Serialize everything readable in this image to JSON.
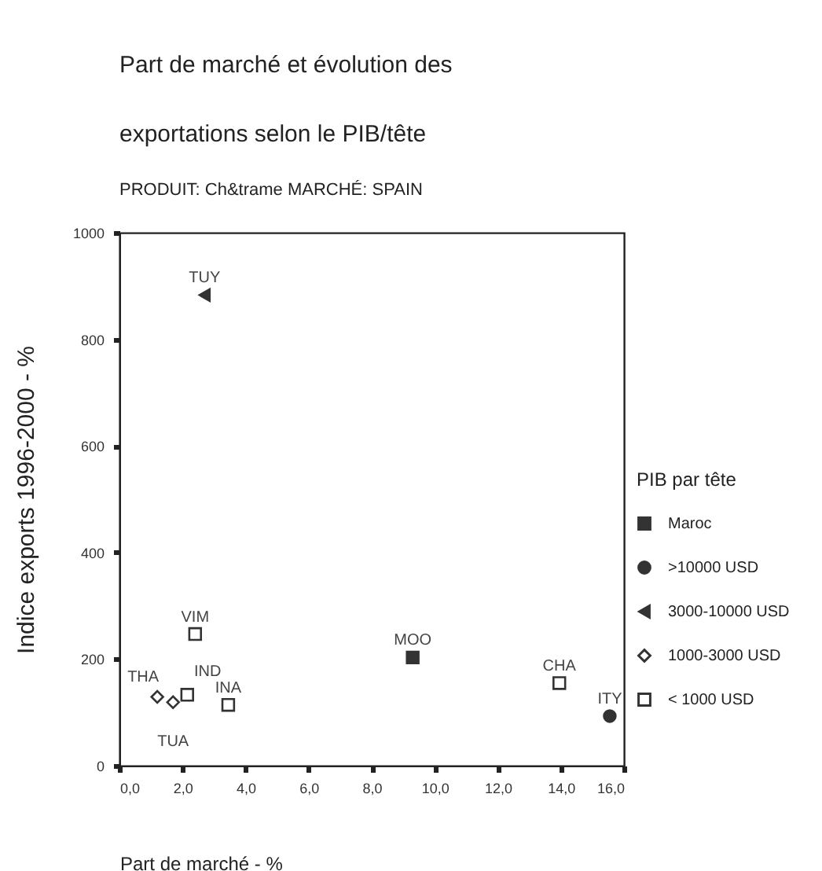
{
  "chart_data": {
    "type": "scatter",
    "title": [
      "Part de marché et évolution des",
      "exportations selon le PIB/tête"
    ],
    "subtitle": "PRODUIT:  Ch&trame     MARCHÉ:  SPAIN",
    "xlabel": "Part de marché - %",
    "ylabel": "Indice exports 1996-2000 - %",
    "legend_title": "PIB par tête",
    "legend": "right",
    "grid": false,
    "xlim": [
      0,
      16
    ],
    "ylim": [
      0,
      1000
    ],
    "xticks": [
      {
        "value": 0,
        "label": "0,0"
      },
      {
        "value": 2,
        "label": "2,0"
      },
      {
        "value": 4,
        "label": "4,0"
      },
      {
        "value": 6,
        "label": "6,0"
      },
      {
        "value": 8,
        "label": "8,0"
      },
      {
        "value": 10,
        "label": "10,0"
      },
      {
        "value": 12,
        "label": "12,0"
      },
      {
        "value": 14,
        "label": "14,0"
      },
      {
        "value": 16,
        "label": "16,0"
      }
    ],
    "yticks": [
      0,
      200,
      400,
      600,
      800,
      1000
    ],
    "series": [
      {
        "name": "Maroc",
        "color": "#333333",
        "marker": "square",
        "x": [
          9.3
        ],
        "values": [
          203
        ]
      },
      {
        "name": ">10000 USD",
        "color": "#333333",
        "marker": "circle",
        "x": [
          15.55
        ],
        "values": [
          93
        ]
      },
      {
        "name": "3000-10000 USD",
        "color": "#333333",
        "marker": "triangle",
        "x": [
          2.7
        ],
        "values": [
          883
        ]
      },
      {
        "name": "1000-3000 USD",
        "color": "#ffffff",
        "marker": "diamond",
        "x": [
          1.2,
          1.7
        ],
        "values": [
          129,
          119
        ]
      },
      {
        "name": "< 1000 USD",
        "color": "#ffffff",
        "marker": "square",
        "x": [
          2.4,
          2.15,
          3.45,
          13.95
        ],
        "values": [
          247,
          133,
          114,
          155
        ]
      }
    ],
    "annotations": [
      {
        "text": "MOO",
        "x": 9.3,
        "y": 203
      },
      {
        "text": "ITY",
        "x": 15.55,
        "y": 93
      },
      {
        "text": "TUY",
        "x": 2.7,
        "y": 883
      },
      {
        "text": "THA",
        "x": 1.2,
        "y": 129
      },
      {
        "text": "TUA",
        "x": 1.7,
        "y": 119
      },
      {
        "text": "VIM",
        "x": 2.4,
        "y": 247
      },
      {
        "text": "IND",
        "x": 2.15,
        "y": 133
      },
      {
        "text": "INA",
        "x": 3.45,
        "y": 114
      },
      {
        "text": "CHA",
        "x": 13.95,
        "y": 155
      }
    ]
  }
}
